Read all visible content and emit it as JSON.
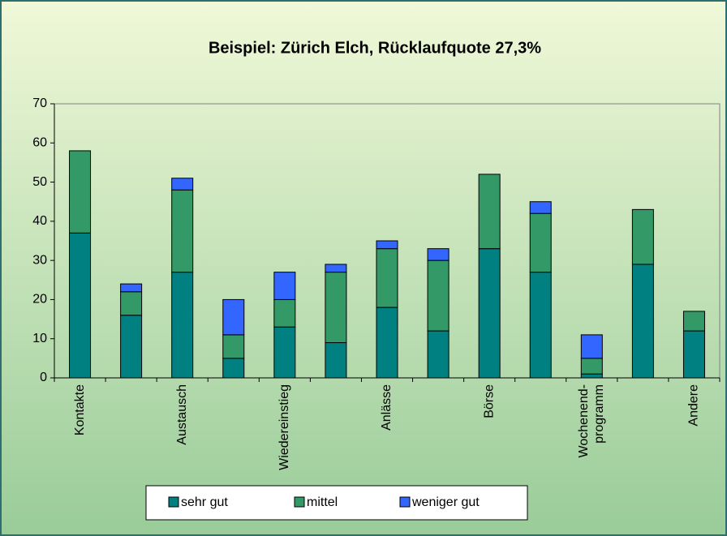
{
  "chart_data": {
    "type": "bar",
    "stacked": true,
    "title": "Beispiel: Zürich Elch, Rücklaufquote 27,3%",
    "categories": [
      "Kontakte",
      null,
      "Austausch",
      null,
      "Wiedereinstieg",
      null,
      "Anlässe",
      null,
      "Börse",
      null,
      "Wochenend-\nprogramm",
      null,
      "Andere"
    ],
    "series": [
      {
        "name": "sehr gut",
        "color": "#008080",
        "values": [
          37,
          16,
          27,
          5,
          13,
          9,
          18,
          12,
          33,
          27,
          1,
          29,
          12
        ]
      },
      {
        "name": "mittel",
        "color": "#339966",
        "values": [
          21,
          6,
          21,
          6,
          7,
          18,
          15,
          18,
          19,
          15,
          4,
          14,
          5
        ]
      },
      {
        "name": "weniger gut",
        "color": "#3366ff",
        "values": [
          0,
          2,
          3,
          9,
          7,
          2,
          2,
          3,
          0,
          3,
          6,
          0,
          0
        ]
      }
    ],
    "ylim": [
      0,
      70
    ],
    "yticks": [
      0,
      10,
      20,
      30,
      40,
      50,
      60,
      70
    ],
    "legend": "bottom"
  }
}
